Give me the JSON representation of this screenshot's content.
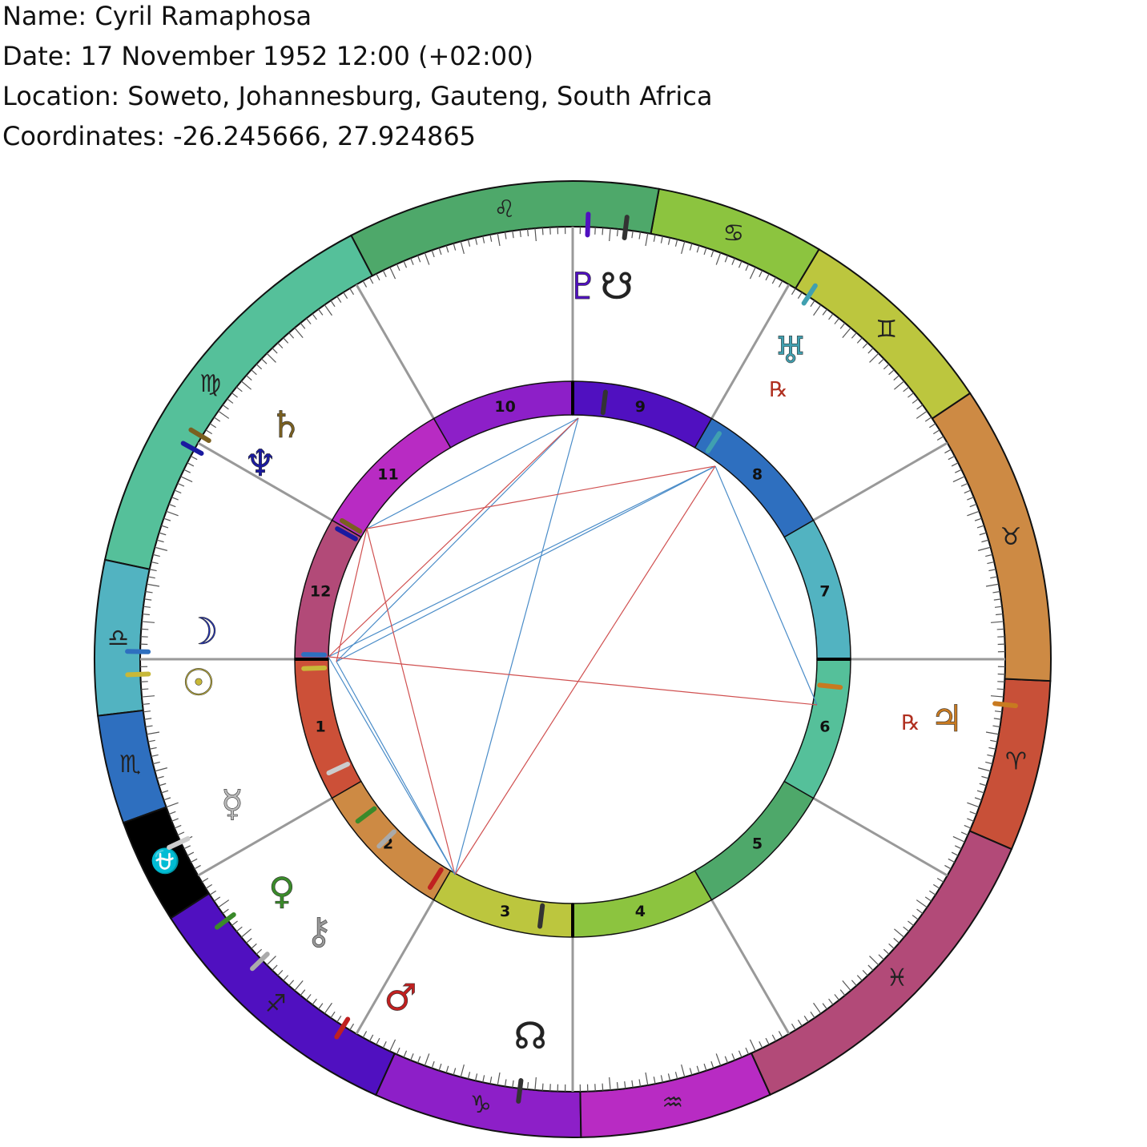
{
  "header": {
    "name": "Name: Cyril Ramaphosa",
    "date": "Date: 17 November 1952 12:00 (+02:00)",
    "location": "Location: Soweto, Johannesburg, Gauteng, South Africa",
    "coordinates": "Coordinates: -26.245666, 27.924865"
  },
  "zodiac": {
    "signs": [
      "♈",
      "♉",
      "♊",
      "♋",
      "♌",
      "♍",
      "♎",
      "♏",
      "⛎",
      "♐",
      "♑",
      "♒",
      "♓"
    ]
  },
  "houses": {
    "numbers": [
      1,
      2,
      3,
      4,
      5,
      6,
      7,
      8,
      9,
      10,
      11,
      12
    ]
  },
  "planets": [
    {
      "glyph": "☉"
    },
    {
      "glyph": "☽"
    },
    {
      "glyph": "☿"
    },
    {
      "glyph": "♀"
    },
    {
      "glyph": "♂"
    },
    {
      "glyph": "♃",
      "retrograde": "℞"
    },
    {
      "glyph": "♄"
    },
    {
      "glyph": "♅",
      "retrograde": "℞"
    },
    {
      "glyph": "♆"
    },
    {
      "glyph": "♇"
    },
    {
      "glyph": "☋"
    },
    {
      "glyph": "☊"
    },
    {
      "glyph": "⚷"
    }
  ]
}
